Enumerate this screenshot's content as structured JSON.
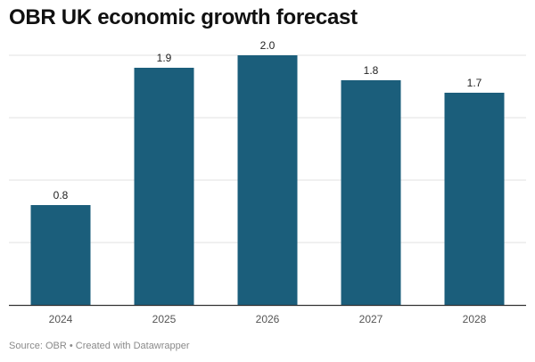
{
  "title": "OBR UK economic growth forecast",
  "source": "Source: OBR • Created with Datawrapper",
  "colors": {
    "bar": "#1b5e7b",
    "grid": "#e2e2e2",
    "baseline": "#333333",
    "label": "#222222",
    "tick": "#555555"
  },
  "chart_data": {
    "type": "bar",
    "title": "OBR UK economic growth forecast",
    "categories": [
      "2024",
      "2025",
      "2026",
      "2027",
      "2028"
    ],
    "values": [
      0.8,
      1.9,
      2.0,
      1.8,
      1.7
    ],
    "data_labels": [
      "0.8",
      "1.9",
      "2.0",
      "1.8",
      "1.7"
    ],
    "xlabel": "",
    "ylabel": "",
    "ylim": [
      0,
      2.0
    ],
    "grid": true,
    "legend": "none"
  }
}
